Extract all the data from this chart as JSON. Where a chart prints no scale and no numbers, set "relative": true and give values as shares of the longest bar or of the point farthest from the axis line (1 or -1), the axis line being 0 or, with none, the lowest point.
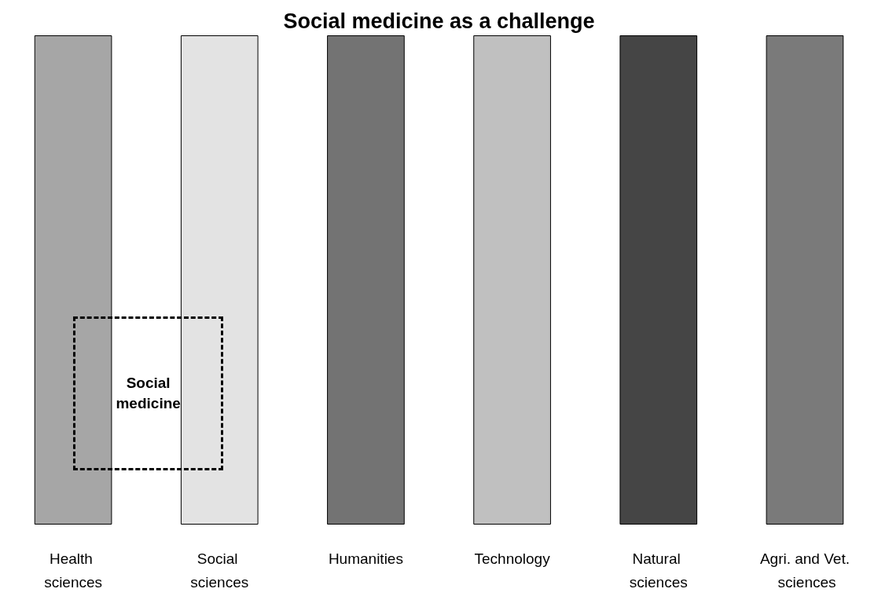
{
  "chart_data": {
    "type": "bar",
    "title": "Social medicine as a challenge",
    "categories": [
      "Health sciences",
      "Social sciences",
      "Humanities",
      "Technology",
      "Natural sciences",
      "Agri. and Vet. sciences"
    ],
    "values": [
      1,
      1,
      1,
      1,
      1,
      1
    ],
    "colors": [
      "#a6a6a6",
      "#e3e3e3",
      "#737373",
      "#c0c0c0",
      "#454545",
      "#7a7a7a"
    ],
    "relative": true,
    "annotations": [
      "Social medicine"
    ]
  }
}
